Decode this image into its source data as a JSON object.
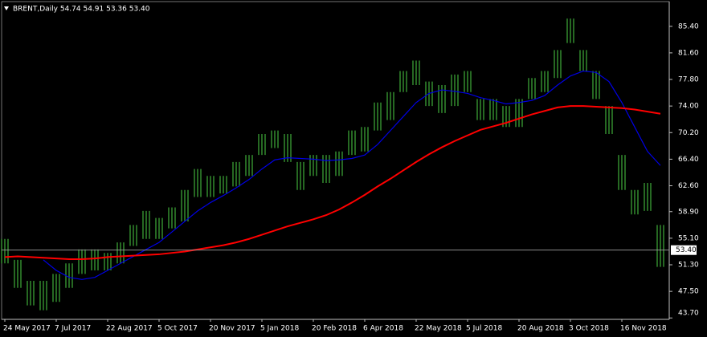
{
  "chart_data": {
    "type": "range_bar",
    "title": "BRENT,Daily  54.74 54.91 53.36 53.40",
    "categories": [
      "24 May 2017",
      null,
      null,
      null,
      "7 Jul 2017",
      null,
      null,
      null,
      "22 Aug 2017",
      null,
      null,
      null,
      "5 Oct 2017",
      null,
      null,
      null,
      "20 Nov 2017",
      null,
      null,
      null,
      "5 Jan 2018",
      null,
      null,
      null,
      "20 Feb 2018",
      null,
      null,
      null,
      "6 Apr 2018",
      null,
      null,
      null,
      "22 May 2018",
      null,
      null,
      null,
      "5 Jul 2018",
      null,
      null,
      null,
      "20 Aug 2018",
      null,
      null,
      null,
      "3 Oct 2018",
      null,
      null,
      null,
      "16 Nov 2018",
      null,
      null,
      null
    ],
    "high": [
      55,
      52,
      49,
      49,
      50,
      51.5,
      53.5,
      53.5,
      53,
      54.5,
      57,
      59,
      58,
      59.5,
      62,
      65,
      64,
      64,
      66,
      67,
      70,
      70.5,
      70,
      66,
      67,
      67,
      67.5,
      70.5,
      71,
      74.5,
      76,
      79,
      80.5,
      77.5,
      77,
      78.5,
      79,
      75,
      75,
      74,
      75,
      78,
      79,
      82,
      86.5,
      82,
      79,
      74,
      67,
      62,
      63,
      57
    ],
    "low": [
      51.5,
      48,
      45.5,
      44.8,
      46,
      48,
      50,
      50.5,
      50.5,
      51.5,
      54,
      55,
      55,
      56.5,
      57.5,
      61,
      61,
      61.5,
      62.5,
      64,
      67,
      68,
      66,
      62,
      64,
      63,
      64,
      67,
      67.5,
      70.5,
      72,
      76,
      77,
      74,
      73,
      74,
      76,
      72,
      72,
      71,
      71,
      75,
      76,
      78,
      83,
      79,
      75,
      70,
      62,
      58.5,
      59,
      51
    ],
    "bar_color": "#3fae3a",
    "ma": [
      {
        "color": "#0000e6",
        "width": 1.2,
        "values": [
          null,
          null,
          null,
          52,
          50.5,
          49.5,
          49.2,
          49.5,
          50.5,
          51.5,
          52.5,
          53.5,
          54.5,
          56,
          57.5,
          59,
          60.2,
          61.2,
          62.3,
          63.5,
          65,
          66.3,
          66.6,
          66.5,
          66.4,
          66.2,
          66.3,
          66.5,
          67,
          68.5,
          70.5,
          72.5,
          74.5,
          75.8,
          76.3,
          76.1,
          75.8,
          75.2,
          74.8,
          74.3,
          74.5,
          74.8,
          75.5,
          77,
          78.3,
          79,
          78.8,
          77.5,
          74.5,
          71,
          67.5,
          65.5
        ]
      },
      {
        "color": "#ff0000",
        "width": 2,
        "values": [
          52.4,
          52.5,
          52.4,
          52.3,
          52.2,
          52.1,
          52.1,
          52.2,
          52.4,
          52.5,
          52.6,
          52.7,
          52.8,
          53.0,
          53.2,
          53.5,
          53.8,
          54.1,
          54.5,
          55.0,
          55.6,
          56.2,
          56.8,
          57.3,
          57.8,
          58.4,
          59.2,
          60.2,
          61.3,
          62.5,
          63.6,
          64.8,
          66.0,
          67.1,
          68.1,
          69.0,
          69.8,
          70.6,
          71.1,
          71.6,
          72.2,
          72.8,
          73.3,
          73.8,
          74.0,
          74.0,
          73.9,
          73.8,
          73.7,
          73.5,
          73.2,
          72.9
        ]
      }
    ],
    "last_price": {
      "value": 53.4,
      "label": "53.40"
    },
    "ylim": [
      43.5,
      88.7
    ],
    "yticks": [
      {
        "value": 43.7,
        "label": "43.70"
      },
      {
        "value": 47.5,
        "label": "47.50"
      },
      {
        "value": 51.3,
        "label": "51.30"
      },
      {
        "value": 55.1,
        "label": "55.10"
      },
      {
        "value": 58.9,
        "label": "58.90"
      },
      {
        "value": 62.6,
        "label": "62.60"
      },
      {
        "value": 66.4,
        "label": "66.40"
      },
      {
        "value": 70.2,
        "label": "70.20"
      },
      {
        "value": 74.0,
        "label": "74.00"
      },
      {
        "value": 77.8,
        "label": "77.80"
      },
      {
        "value": 81.6,
        "label": "81.60"
      },
      {
        "value": 85.4,
        "label": "85.40"
      }
    ],
    "grid": false
  }
}
